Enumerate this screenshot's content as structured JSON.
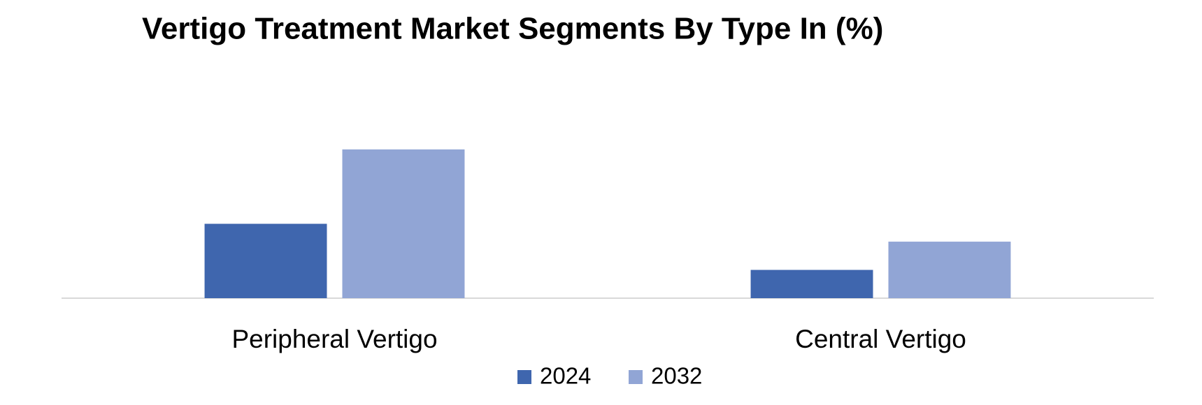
{
  "chart_data": {
    "type": "bar",
    "title": "Vertigo Treatment Market Segments By Type In (%)",
    "categories": [
      "Peripheral Vertigo",
      "Central Vertigo"
    ],
    "series": [
      {
        "name": "2024",
        "color": "#3f66ae",
        "values": [
          25,
          9.5
        ]
      },
      {
        "name": "2032",
        "color": "#91a5d5",
        "values": [
          50,
          19
        ]
      }
    ],
    "legend": "bottom"
  }
}
